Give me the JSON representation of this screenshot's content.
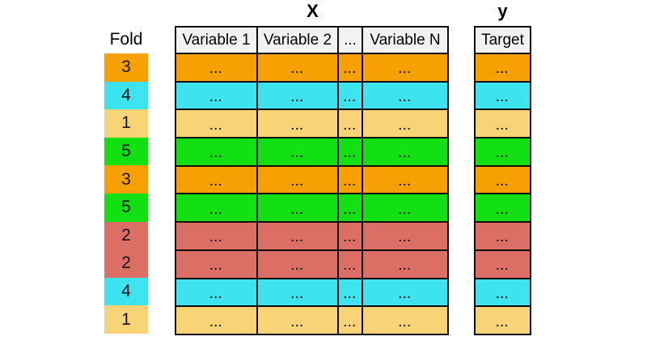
{
  "titles": {
    "x": "X",
    "y": "y",
    "fold": "Fold"
  },
  "x_table": {
    "headers": [
      "Variable 1",
      "Variable 2",
      "...",
      "Variable N"
    ]
  },
  "y_table": {
    "header": "Target"
  },
  "cell_text": "...",
  "rows": [
    {
      "fold": "3",
      "color_key": "orange"
    },
    {
      "fold": "4",
      "color_key": "cyan"
    },
    {
      "fold": "1",
      "color_key": "yellow"
    },
    {
      "fold": "5",
      "color_key": "green"
    },
    {
      "fold": "3",
      "color_key": "orange"
    },
    {
      "fold": "5",
      "color_key": "green"
    },
    {
      "fold": "2",
      "color_key": "salmon"
    },
    {
      "fold": "2",
      "color_key": "salmon"
    },
    {
      "fold": "4",
      "color_key": "cyan"
    },
    {
      "fold": "1",
      "color_key": "yellow"
    }
  ],
  "colors": {
    "orange": "#F6A101",
    "cyan": "#3EE3F0",
    "yellow": "#F8D477",
    "green": "#12E012",
    "salmon": "#DB6F66",
    "header_bg": "#F2F2F2",
    "grid_line": "#0D0D0D"
  }
}
